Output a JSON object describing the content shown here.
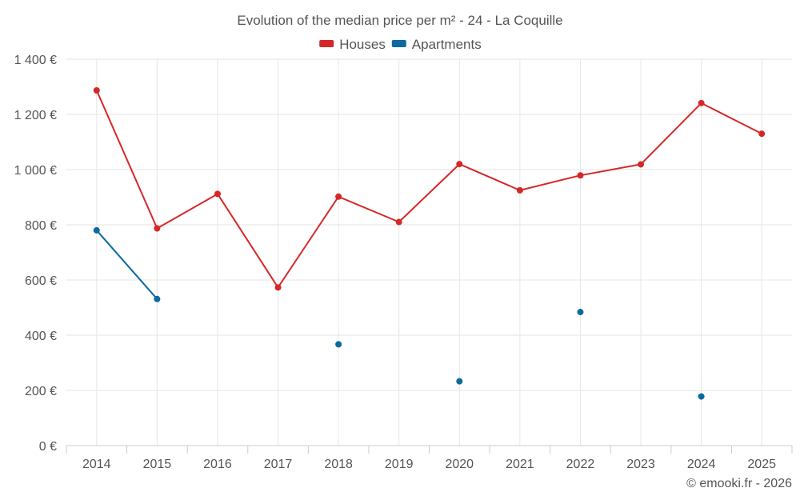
{
  "chart_data": {
    "type": "line",
    "title": "Evolution of the median price per m² - 24 - La Coquille",
    "categories": [
      "2014",
      "2015",
      "2016",
      "2017",
      "2018",
      "2019",
      "2020",
      "2021",
      "2022",
      "2023",
      "2024",
      "2025"
    ],
    "ylim": [
      0,
      1400
    ],
    "yticks": [
      0,
      200,
      400,
      600,
      800,
      1000,
      1200,
      1400
    ],
    "ytick_labels": [
      "0 €",
      "200 €",
      "400 €",
      "600 €",
      "800 €",
      "1 000 €",
      "1 200 €",
      "1 400 €"
    ],
    "xlabel": "",
    "ylabel": "",
    "legend_position": "top-center",
    "grid": true,
    "series": [
      {
        "name": "Houses",
        "color": "#d62728",
        "values": [
          1287,
          787,
          912,
          573,
          902,
          810,
          1020,
          925,
          979,
          1019,
          1241,
          1130
        ]
      },
      {
        "name": "Apartments",
        "color": "#0a6aa1",
        "values": [
          780,
          531,
          null,
          null,
          367,
          null,
          233,
          null,
          484,
          null,
          178,
          null
        ]
      }
    ]
  },
  "credit": "© emooki.fr - 2026"
}
